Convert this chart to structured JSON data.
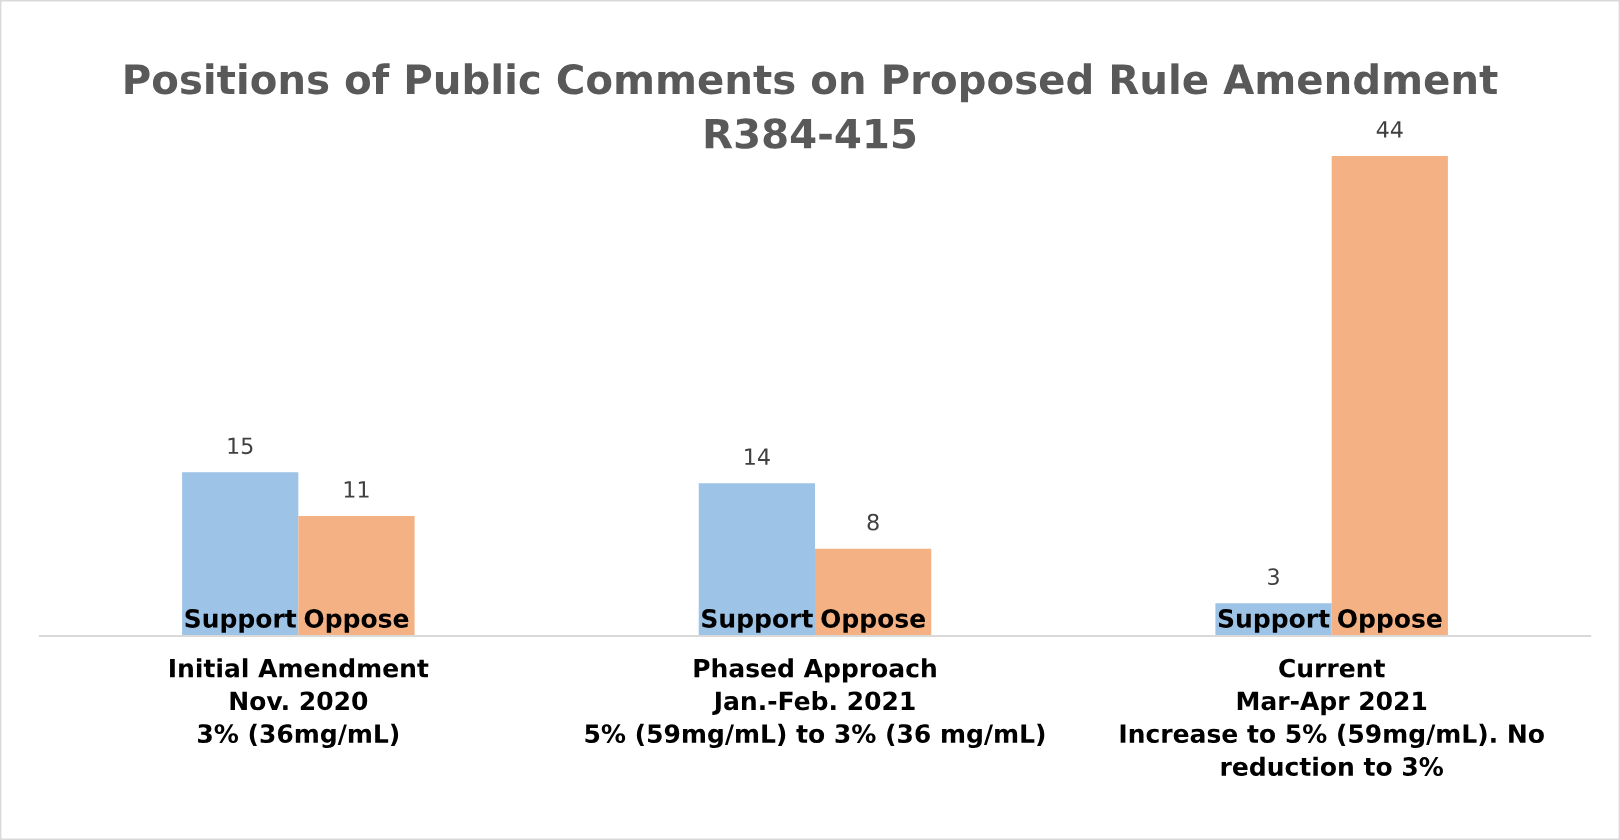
{
  "chart_data": {
    "type": "bar",
    "title": "Positions of Public Comments on Proposed Rule Amendment\nR384-415",
    "categories": [
      "Initial Amendment\nNov. 2020\n3% (36mg/mL)",
      "Phased Approach\nJan.-Feb. 2021\n5% (59mg/mL) to 3% (36 mg/mL)",
      "Current\nMar-Apr 2021\nIncrease to 5% (59mg/mL). No\nreduction to 3%"
    ],
    "series": [
      {
        "name": "Support",
        "color": "#9dc3e6",
        "values": [
          15,
          14,
          3
        ]
      },
      {
        "name": "Oppose",
        "color": "#f4b183",
        "values": [
          11,
          8,
          44
        ]
      }
    ],
    "data_labels": true,
    "grid": false,
    "legend": false
  }
}
